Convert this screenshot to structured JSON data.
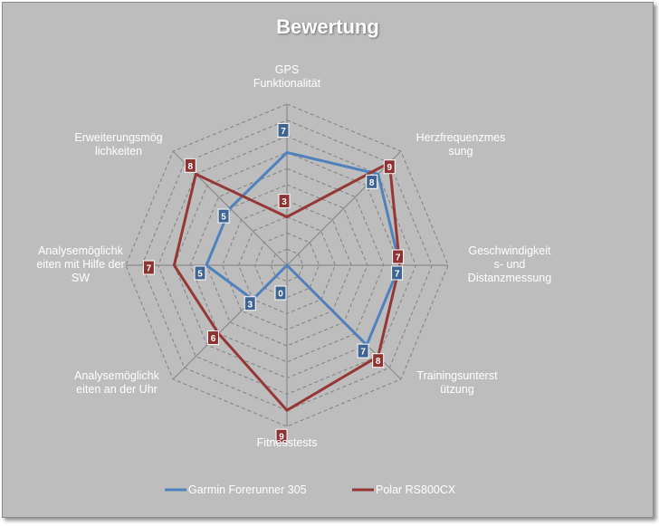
{
  "chart_data": {
    "type": "radar",
    "title": "Bewertung",
    "categories": [
      [
        "GPS",
        "Funktionalität"
      ],
      [
        "Herzfrequenzmes",
        "sung"
      ],
      [
        "Geschwindigkeit",
        "s- und",
        "Distanzmessung"
      ],
      [
        "Trainingsunterst",
        "ützung"
      ],
      [
        "Fitnesstests"
      ],
      [
        "Analysemöglichk",
        "eiten an der Uhr"
      ],
      [
        "Analysemöglichk",
        "eiten mit Hilfe der",
        "SW"
      ],
      [
        "Erweiterungsmög",
        "lichkeiten"
      ]
    ],
    "rlim": [
      0,
      10
    ],
    "grid": true,
    "legend_position": "bottom",
    "series": [
      {
        "name": "Garmin Forerunner 305",
        "color": "#4f81bd",
        "label_color": "#3f6392",
        "values": [
          7,
          8,
          7,
          7,
          0,
          3,
          5,
          5
        ]
      },
      {
        "name": "Polar RS800CX",
        "color": "#953735",
        "label_color": "#8e3331",
        "values": [
          3,
          9,
          7,
          8,
          9,
          6,
          7,
          8
        ]
      }
    ]
  }
}
